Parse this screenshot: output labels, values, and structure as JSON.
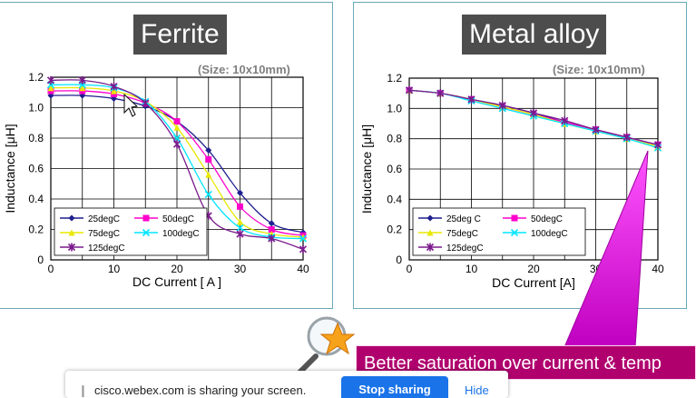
{
  "panels": [
    {
      "title": "Ferrite",
      "size_note": "(Size: 10x10mm)"
    },
    {
      "title": "Metal alloy",
      "size_note": "(Size: 10x10mm)"
    }
  ],
  "callout": {
    "text": "Better saturation over current & temp",
    "color": "#b0006e",
    "arrow_color": "#e020e0"
  },
  "share_bar": {
    "text": "cisco.webex.com is sharing your screen.",
    "stop_label": "Stop sharing",
    "hide_label": "Hide"
  },
  "chart_data": [
    {
      "type": "line",
      "title": "Ferrite",
      "xlabel": "DC Current [ A ]",
      "ylabel": "Inductance [μH]",
      "xlim": [
        0,
        40
      ],
      "ylim": [
        0,
        1.2
      ],
      "xticks": [
        "0",
        "10",
        "20",
        "30",
        "40"
      ],
      "yticks": [
        "0",
        "0.2",
        "0.4",
        "0.6",
        "0.8",
        "1.0",
        "1.2"
      ],
      "grid": true,
      "legend": "bottom-left",
      "series": [
        {
          "name": "25degC",
          "color": "#1f1f8f",
          "marker": "diamond",
          "x": [
            0,
            5,
            10,
            15,
            20,
            25,
            30,
            35,
            40
          ],
          "y": [
            1.08,
            1.08,
            1.06,
            1.01,
            0.91,
            0.72,
            0.44,
            0.24,
            0.18
          ]
        },
        {
          "name": "50degC",
          "color": "#ff00cc",
          "marker": "square",
          "x": [
            0,
            5,
            10,
            15,
            20,
            25,
            30,
            35,
            40
          ],
          "y": [
            1.11,
            1.11,
            1.09,
            1.03,
            0.91,
            0.66,
            0.35,
            0.2,
            0.16
          ]
        },
        {
          "name": "75degC",
          "color": "#e8e800",
          "marker": "triangle",
          "x": [
            0,
            5,
            10,
            15,
            20,
            25,
            30,
            35,
            40
          ],
          "y": [
            1.13,
            1.13,
            1.11,
            1.04,
            0.87,
            0.56,
            0.25,
            0.17,
            0.15
          ]
        },
        {
          "name": "100degC",
          "color": "#00e5ff",
          "marker": "x",
          "x": [
            0,
            5,
            10,
            15,
            20,
            25,
            30,
            35,
            40
          ],
          "y": [
            1.15,
            1.15,
            1.13,
            1.04,
            0.8,
            0.43,
            0.21,
            0.15,
            0.14
          ]
        },
        {
          "name": "125degC",
          "color": "#7a1a8c",
          "marker": "star",
          "x": [
            0,
            5,
            10,
            15,
            20,
            25,
            30,
            35,
            40
          ],
          "y": [
            1.18,
            1.18,
            1.14,
            1.03,
            0.76,
            0.29,
            0.17,
            0.14,
            0.07
          ]
        }
      ]
    },
    {
      "type": "line",
      "title": "Metal alloy",
      "xlabel": "DC Current [A]",
      "ylabel": "Inductance [μH]",
      "xlim": [
        0,
        40
      ],
      "ylim": [
        0,
        1.2
      ],
      "xticks": [
        "0",
        "10",
        "20",
        "30",
        "40"
      ],
      "yticks": [
        "0",
        "0.2",
        "0.4",
        "0.6",
        "0.8",
        "1.0",
        "1.2"
      ],
      "grid": true,
      "legend": "bottom-left",
      "series": [
        {
          "name": "25deg C",
          "color": "#1f1f8f",
          "marker": "diamond",
          "x": [
            0,
            5,
            10,
            15,
            20,
            25,
            30,
            35,
            40
          ],
          "y": [
            1.12,
            1.1,
            1.06,
            1.02,
            0.97,
            0.91,
            0.86,
            0.81,
            0.76
          ]
        },
        {
          "name": "50degC",
          "color": "#ff00cc",
          "marker": "square",
          "x": [
            0,
            5,
            10,
            15,
            20,
            25,
            30,
            35,
            40
          ],
          "y": [
            1.12,
            1.1,
            1.06,
            1.01,
            0.96,
            0.91,
            0.86,
            0.81,
            0.76
          ]
        },
        {
          "name": "75degC",
          "color": "#e8e800",
          "marker": "triangle",
          "x": [
            0,
            5,
            10,
            15,
            20,
            25,
            30,
            35,
            40
          ],
          "y": [
            1.12,
            1.1,
            1.06,
            1.01,
            0.96,
            0.9,
            0.85,
            0.8,
            0.75
          ]
        },
        {
          "name": "100degC",
          "color": "#00e5ff",
          "marker": "x",
          "x": [
            0,
            5,
            10,
            15,
            20,
            25,
            30,
            35,
            40
          ],
          "y": [
            1.12,
            1.1,
            1.05,
            1.0,
            0.95,
            0.9,
            0.85,
            0.8,
            0.74
          ]
        },
        {
          "name": "125degC",
          "color": "#7a1a8c",
          "marker": "star",
          "x": [
            0,
            5,
            10,
            15,
            20,
            25,
            30,
            35,
            40
          ],
          "y": [
            1.12,
            1.1,
            1.06,
            1.02,
            0.97,
            0.92,
            0.86,
            0.81,
            0.76
          ]
        }
      ]
    }
  ]
}
